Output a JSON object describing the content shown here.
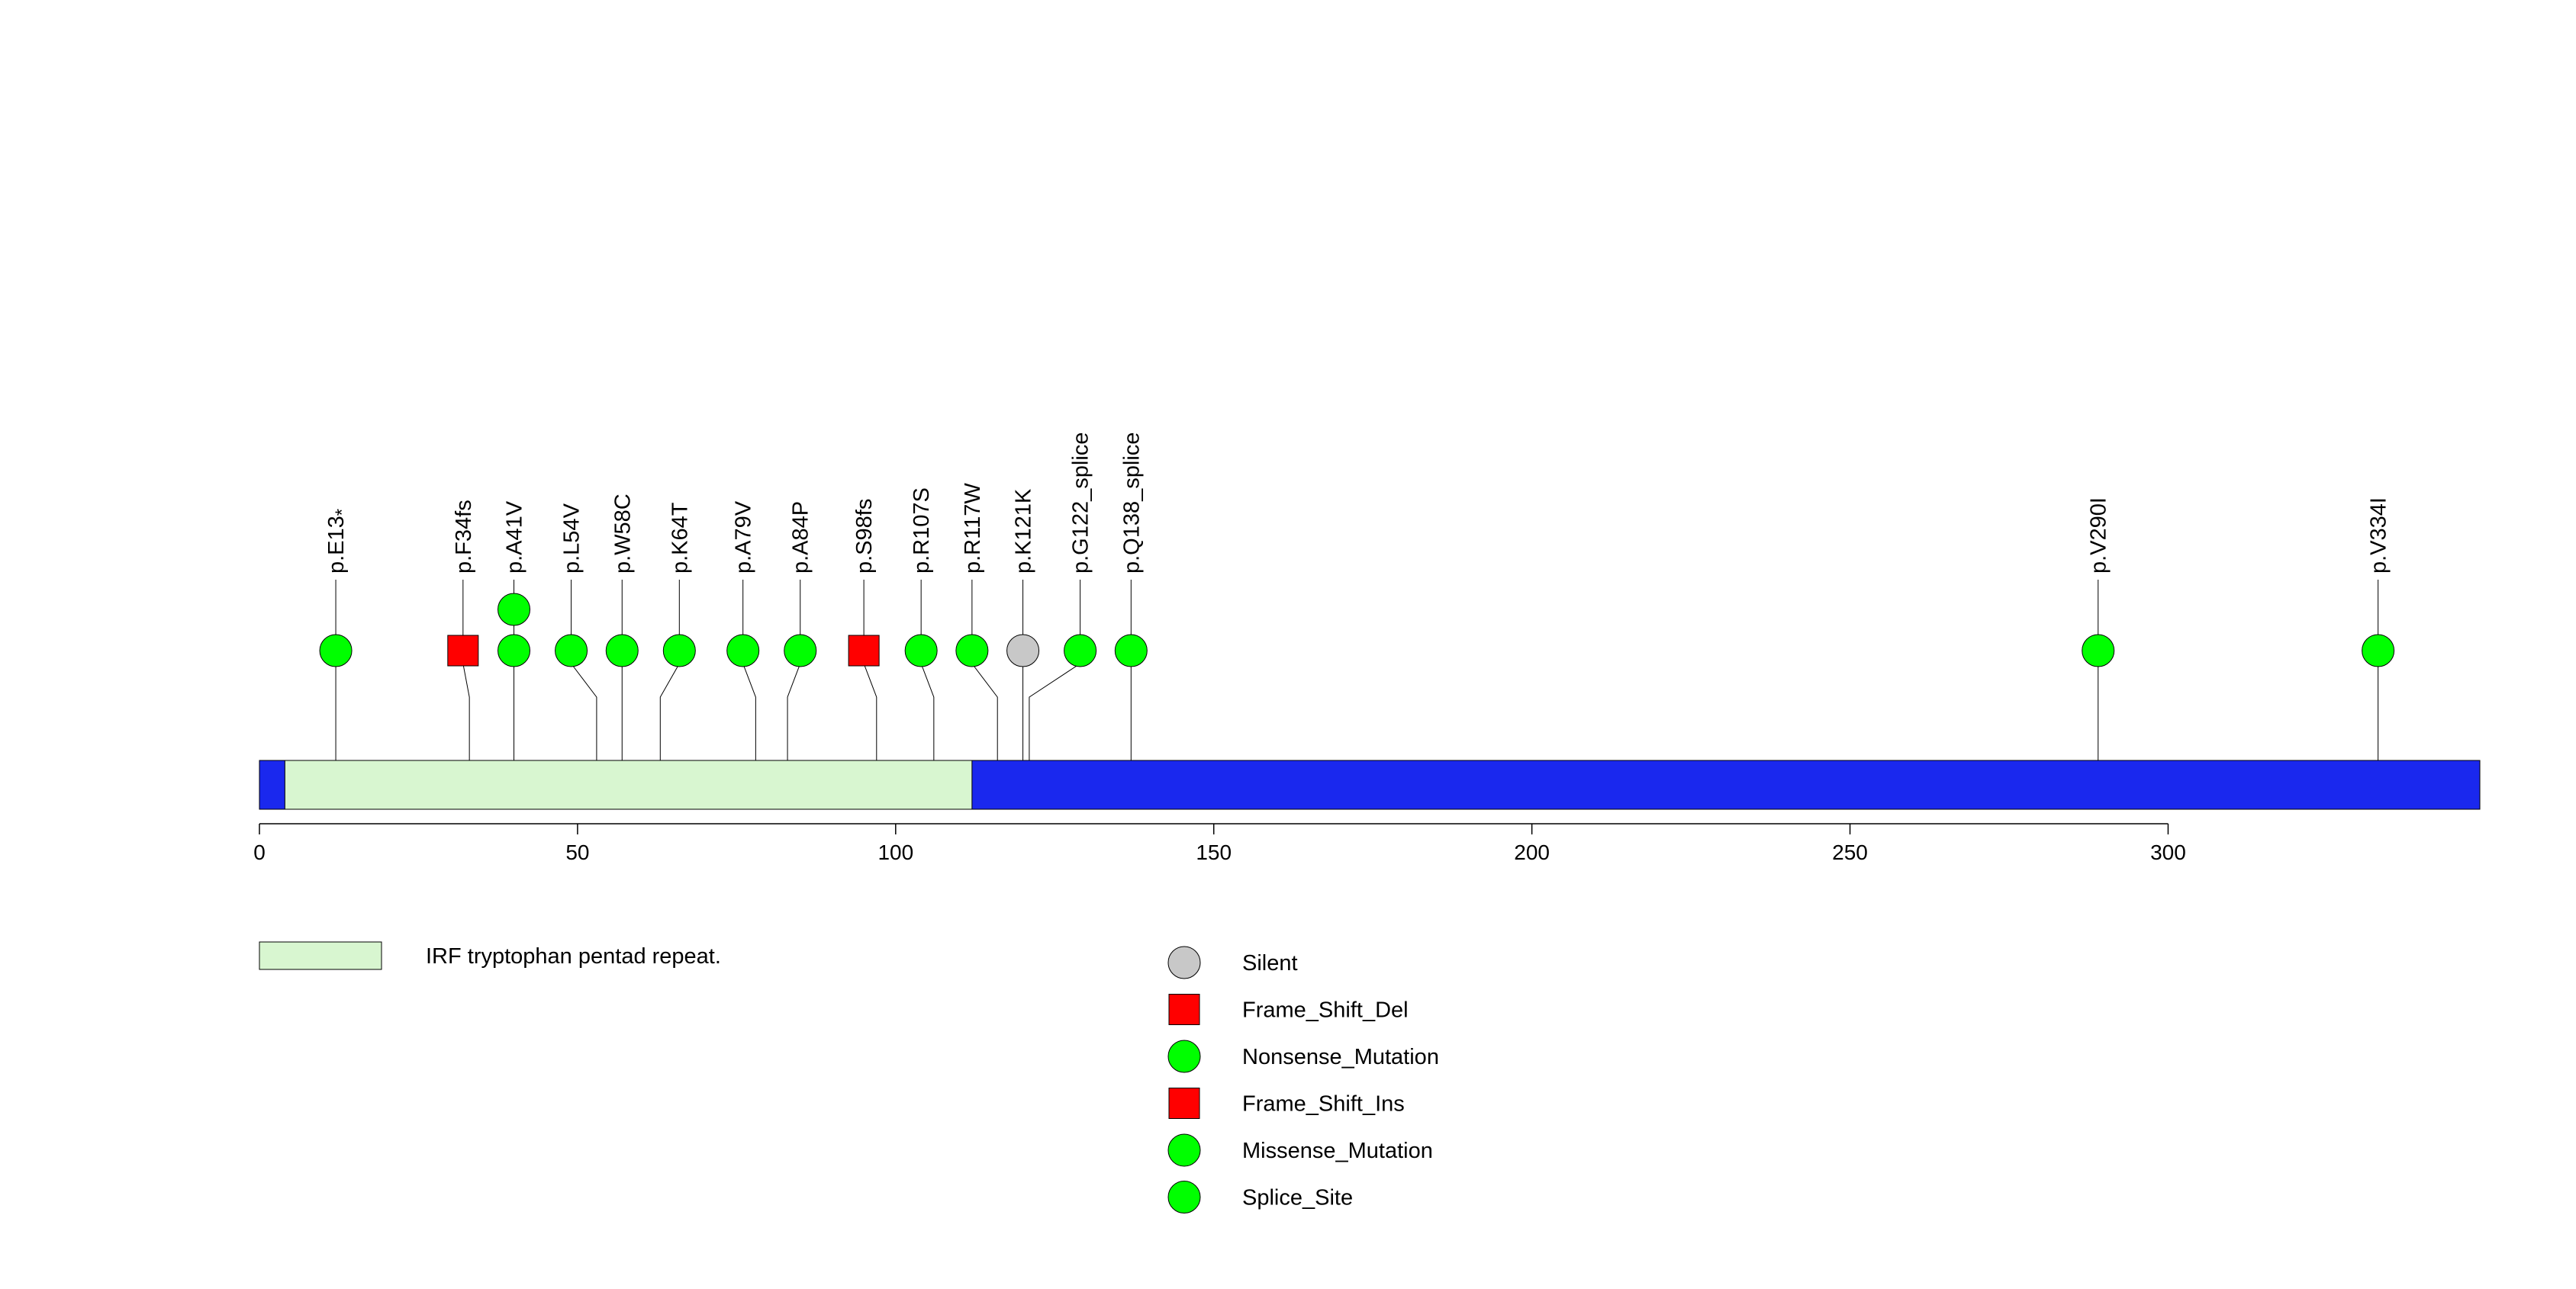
{
  "chart_data": {
    "type": "lollipop",
    "title": "",
    "protein_length": 349,
    "x_ticks": [
      0,
      50,
      100,
      150,
      200,
      250,
      300
    ],
    "colors": {
      "backbone": "#1a28ee",
      "domain_fill": "#d8f6d0",
      "missense": "#00ff00",
      "silent": "#c8c8c8",
      "frameshift": "#ff0000",
      "stroke": "#000000"
    },
    "domains": [
      {
        "name": "IRF tryptophan pentad repeat.",
        "start": 4,
        "end": 112
      }
    ],
    "mutations": [
      {
        "label": "p.E13",
        "label_suffix": "*",
        "position": 12,
        "display_position": 12,
        "type": "Nonsense_Mutation",
        "count": 1
      },
      {
        "label": "p.F34fs",
        "label_suffix": "",
        "position": 33,
        "display_position": 32,
        "type": "Frame_Shift_Del",
        "count": 1
      },
      {
        "label": "p.A41V",
        "label_suffix": "",
        "position": 40,
        "display_position": 40,
        "type": "Missense_Mutation",
        "count": 2
      },
      {
        "label": "p.L54V",
        "label_suffix": "",
        "position": 53,
        "display_position": 49,
        "type": "Missense_Mutation",
        "count": 1
      },
      {
        "label": "p.W58C",
        "label_suffix": "",
        "position": 57,
        "display_position": 57,
        "type": "Missense_Mutation",
        "count": 1
      },
      {
        "label": "p.K64T",
        "label_suffix": "",
        "position": 63,
        "display_position": 66,
        "type": "Missense_Mutation",
        "count": 1
      },
      {
        "label": "p.A79V",
        "label_suffix": "",
        "position": 78,
        "display_position": 76,
        "type": "Missense_Mutation",
        "count": 1
      },
      {
        "label": "p.A84P",
        "label_suffix": "",
        "position": 83,
        "display_position": 85,
        "type": "Missense_Mutation",
        "count": 1
      },
      {
        "label": "p.S98fs",
        "label_suffix": "",
        "position": 97,
        "display_position": 95,
        "type": "Frame_Shift_Ins",
        "count": 1
      },
      {
        "label": "p.R107S",
        "label_suffix": "",
        "position": 106,
        "display_position": 104,
        "type": "Missense_Mutation",
        "count": 1
      },
      {
        "label": "p.R117W",
        "label_suffix": "",
        "position": 116,
        "display_position": 112,
        "type": "Missense_Mutation",
        "count": 1
      },
      {
        "label": "p.K121K",
        "label_suffix": "",
        "position": 120,
        "display_position": 120,
        "type": "Silent",
        "count": 1
      },
      {
        "label": "p.G122_splice",
        "label_suffix": "",
        "position": 121,
        "display_position": 129,
        "type": "Splice_Site",
        "count": 1
      },
      {
        "label": "p.Q138_splice",
        "label_suffix": "",
        "position": 137,
        "display_position": 137,
        "type": "Splice_Site",
        "count": 1
      },
      {
        "label": "p.V290I",
        "label_suffix": "",
        "position": 289,
        "display_position": 289,
        "type": "Missense_Mutation",
        "count": 1
      },
      {
        "label": "p.V334I",
        "label_suffix": "",
        "position": 333,
        "display_position": 333,
        "type": "Missense_Mutation",
        "count": 1
      }
    ],
    "legend": [
      {
        "label": "Silent",
        "shape": "circle",
        "color": "#c8c8c8"
      },
      {
        "label": "Frame_Shift_Del",
        "shape": "square",
        "color": "#ff0000"
      },
      {
        "label": "Nonsense_Mutation",
        "shape": "circle",
        "color": "#00ff00"
      },
      {
        "label": "Frame_Shift_Ins",
        "shape": "square",
        "color": "#ff0000"
      },
      {
        "label": "Missense_Mutation",
        "shape": "circle",
        "color": "#00ff00"
      },
      {
        "label": "Splice_Site",
        "shape": "circle",
        "color": "#00ff00"
      }
    ]
  }
}
